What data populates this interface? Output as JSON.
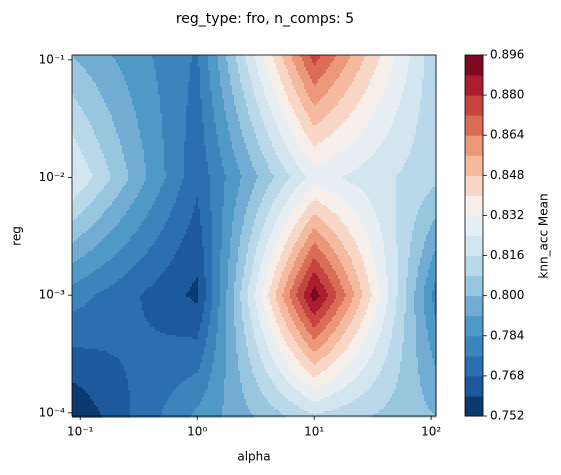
{
  "chart_data": {
    "type": "contourf",
    "title": "reg_type: fro, n_comps: 5",
    "x_label": "alpha",
    "y_label": "reg",
    "colorbar_label": "knn_acc Mean",
    "xscale": "log",
    "yscale": "log",
    "x": [
      0.085,
      1,
      10,
      110
    ],
    "y": [
      9.4e-05,
      0.001,
      0.01,
      0.11
    ],
    "z": [
      [
        0.752,
        0.786,
        0.815,
        0.8
      ],
      [
        0.78,
        0.758,
        0.893,
        0.78
      ],
      [
        0.825,
        0.77,
        0.828,
        0.81
      ],
      [
        0.8,
        0.775,
        0.876,
        0.81
      ]
    ],
    "xlim": [
      0.085,
      110
    ],
    "ylim": [
      9.4e-05,
      0.11
    ],
    "xticks": [
      {
        "value": 0.1,
        "label": "10⁻¹"
      },
      {
        "value": 1,
        "label": "10⁰"
      },
      {
        "value": 10,
        "label": "10¹"
      },
      {
        "value": 100,
        "label": "10²"
      }
    ],
    "yticks": [
      {
        "value": 0.0001,
        "label": "10⁻⁴"
      },
      {
        "value": 0.001,
        "label": "10⁻³"
      },
      {
        "value": 0.01,
        "label": "10⁻²"
      },
      {
        "value": 0.1,
        "label": "10⁻¹"
      }
    ],
    "levels": [
      0.752,
      0.76,
      0.768,
      0.776,
      0.784,
      0.792,
      0.8,
      0.808,
      0.816,
      0.824,
      0.832,
      0.84,
      0.848,
      0.856,
      0.864,
      0.872,
      0.88,
      0.888,
      0.896
    ],
    "colors": [
      "#0d3a6e",
      "#1c5a9c",
      "#2b6fb0",
      "#3b84bc",
      "#4f99c7",
      "#72acd2",
      "#98c6df",
      "#b9d8e9",
      "#d3e6f0",
      "#e8eff4",
      "#f6eee9",
      "#f9d7c6",
      "#f5baa0",
      "#eb9779",
      "#d96d55",
      "#c64541",
      "#ac1d2d",
      "#7d0a22"
    ],
    "colorbar_ticks": [
      0.752,
      0.768,
      0.784,
      {
        "value": 0.8,
        "label": "0.800"
      },
      0.816,
      0.832,
      0.848,
      0.864,
      {
        "value": 0.88,
        "label": "0.880"
      },
      0.896
    ]
  }
}
